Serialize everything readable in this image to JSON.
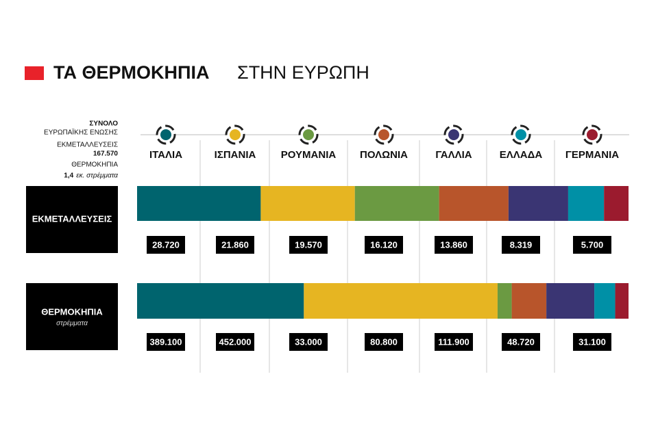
{
  "chart_data": {
    "type": "stacked-bar",
    "title": "ΤΑ ΘΕΡΜΟΚΗΠΙΑ",
    "subtitle": "ΣΤΗΝ ΕΥΡΩΠΗ",
    "totals": {
      "heading": "ΣΥΝΟΛΟ",
      "subheading": "ΕΥΡΩΠΑΪΚΗΣ ΕΝΩΣΗΣ",
      "items": [
        {
          "name": "ΕΚΜΕΤΑΛΛΕΥΣΕΙΣ",
          "value": 167570,
          "label": "167.570"
        },
        {
          "name": "ΘΕΡΜΟΚΗΠΙΑ",
          "value": 1.4,
          "label": "1,4",
          "unit": "εκ. στρέμματα"
        }
      ]
    },
    "categories": [
      "ΕΚΜΕΤΑΛΛΕΥΣΕΙΣ",
      "ΘΕΡΜΟΚΗΠΙΑ"
    ],
    "category_units": [
      null,
      "στρέμματα"
    ],
    "series": [
      {
        "name": "ΙΤΑΛΙΑ",
        "color": "#00646e",
        "values": [
          28720,
          389100
        ],
        "value_labels": [
          "28.720",
          "389.100"
        ]
      },
      {
        "name": "ΙΣΠΑΝΙΑ",
        "color": "#e6b522",
        "values": [
          21860,
          452000
        ],
        "value_labels": [
          "21.860",
          "452.000"
        ]
      },
      {
        "name": "ΡΟΥΜΑΝΙΑ",
        "color": "#6b9a42",
        "values": [
          19570,
          33000
        ],
        "value_labels": [
          "19.570",
          "33.000"
        ]
      },
      {
        "name": "ΠΟΛΩΝΙΑ",
        "color": "#b8552b",
        "values": [
          16120,
          80800
        ],
        "value_labels": [
          "16.120",
          "80.800"
        ]
      },
      {
        "name": "ΓΑΛΛΙΑ",
        "color": "#3a3573",
        "values": [
          13860,
          111900
        ],
        "value_labels": [
          "13.860",
          "111.900"
        ]
      },
      {
        "name": "ΕΛΛΑΔΑ",
        "color": "#0090a6",
        "values": [
          8319,
          48720
        ],
        "value_labels": [
          "8.319",
          "48.720"
        ]
      },
      {
        "name": "ΓΕΡΜΑΝΙΑ",
        "color": "#9b1b2e",
        "values": [
          5700,
          31100
        ],
        "value_labels": [
          "5.700",
          "31.100"
        ]
      }
    ]
  }
}
